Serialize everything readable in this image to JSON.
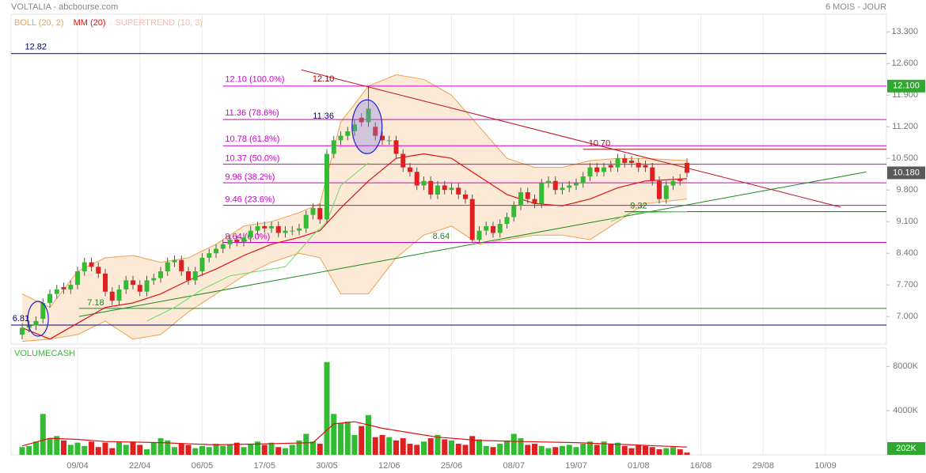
{
  "chart_data": [
    {
      "type": "candlestick",
      "title": "VOLTALIA - abcbourse.com",
      "subtitle": "6 MOIS - JOUR",
      "indicators": [
        {
          "name": "BOLL (20, 2)",
          "color": "#f0a050"
        },
        {
          "name": "MM (20)",
          "color": "#e01010"
        },
        {
          "name": "SUPERTREND (10, 3)",
          "color": "#f4b8a8"
        }
      ],
      "up_color": "#33bb33",
      "down_color": "#e02020",
      "xlim": [
        -1.6,
        124.8
      ],
      "ylim": [
        6.39,
        13.69
      ],
      "yticks": [
        {
          "value": 7.0,
          "label": "7.000"
        },
        {
          "value": 7.7,
          "label": "7.700"
        },
        {
          "value": 8.4,
          "label": "8.400"
        },
        {
          "value": 9.1,
          "label": "9.100"
        },
        {
          "value": 9.8,
          "label": "9.800"
        },
        {
          "value": 10.5,
          "label": "10.500"
        },
        {
          "value": 11.2,
          "label": "11.200"
        },
        {
          "value": 11.9,
          "label": "11.900"
        },
        {
          "value": 12.6,
          "label": "12.600"
        },
        {
          "value": 13.3,
          "label": "13.300"
        }
      ],
      "open": [
        6.6,
        6.75,
        6.8,
        6.95,
        7.3,
        7.5,
        7.65,
        7.6,
        7.7,
        8.0,
        8.2,
        8.1,
        7.95,
        7.55,
        7.35,
        7.6,
        7.8,
        7.7,
        7.55,
        7.8,
        7.85,
        8.0,
        8.2,
        8.25,
        8.0,
        7.8,
        8.0,
        8.3,
        8.4,
        8.5,
        8.6,
        8.7,
        8.65,
        8.75,
        8.9,
        9.0,
        8.95,
        9.0,
        8.85,
        8.9,
        8.9,
        8.95,
        9.25,
        9.4,
        9.15,
        10.6,
        10.9,
        11.0,
        11.1,
        11.4,
        11.3,
        11.2,
        11.0,
        10.9,
        10.9,
        10.6,
        10.3,
        10.2,
        9.9,
        10.0,
        9.7,
        9.9,
        9.8,
        9.85,
        9.7,
        9.6,
        8.7,
        8.9,
        9.0,
        8.85,
        9.05,
        9.2,
        9.45,
        9.75,
        9.6,
        9.5,
        9.95,
        10.0,
        9.8,
        9.85,
        9.9,
        9.95,
        10.1,
        10.3,
        10.2,
        10.35,
        10.3,
        10.5,
        10.45,
        10.4,
        10.35,
        10.3,
        10.0,
        9.6,
        9.9,
        10.05,
        10.4
      ],
      "high": [
        6.85,
        6.9,
        7.0,
        7.4,
        7.6,
        7.7,
        7.75,
        7.8,
        8.1,
        8.3,
        8.3,
        8.2,
        8.05,
        7.65,
        7.7,
        7.9,
        7.9,
        7.8,
        7.9,
        7.95,
        8.1,
        8.3,
        8.35,
        8.35,
        8.1,
        8.1,
        8.4,
        8.5,
        8.6,
        8.7,
        8.8,
        8.8,
        8.85,
        9.0,
        9.1,
        9.1,
        9.1,
        9.1,
        9.0,
        9.0,
        9.05,
        9.35,
        9.5,
        9.5,
        10.7,
        11.0,
        11.1,
        11.2,
        11.35,
        11.5,
        12.1,
        11.3,
        11.1,
        11.0,
        11.0,
        10.7,
        10.4,
        10.3,
        10.1,
        10.1,
        10.0,
        10.0,
        9.95,
        9.95,
        9.8,
        9.7,
        9.0,
        9.1,
        9.1,
        9.15,
        9.3,
        9.55,
        9.85,
        9.85,
        9.7,
        10.05,
        10.1,
        10.1,
        9.95,
        10.0,
        10.05,
        10.2,
        10.4,
        10.4,
        10.4,
        10.45,
        10.6,
        10.6,
        10.55,
        10.5,
        10.45,
        10.4,
        10.1,
        10.0,
        10.1,
        10.15,
        10.5
      ],
      "low": [
        6.5,
        6.65,
        6.7,
        6.85,
        7.2,
        7.4,
        7.5,
        7.5,
        7.6,
        7.9,
        8.0,
        7.85,
        7.45,
        7.25,
        7.25,
        7.5,
        7.6,
        7.45,
        7.45,
        7.7,
        7.75,
        7.9,
        8.1,
        7.9,
        7.7,
        7.7,
        7.9,
        8.2,
        8.3,
        8.4,
        8.5,
        8.55,
        8.55,
        8.65,
        8.8,
        8.85,
        8.85,
        8.75,
        8.75,
        8.8,
        8.8,
        8.85,
        9.15,
        9.05,
        9.05,
        10.5,
        10.8,
        10.9,
        11.0,
        11.2,
        11.2,
        10.9,
        10.8,
        10.8,
        10.5,
        10.2,
        10.1,
        9.8,
        9.8,
        9.6,
        9.6,
        9.7,
        9.7,
        9.6,
        9.5,
        8.64,
        8.65,
        8.8,
        8.75,
        8.75,
        8.95,
        9.1,
        9.35,
        9.5,
        9.4,
        9.4,
        9.85,
        9.7,
        9.7,
        9.75,
        9.8,
        9.85,
        10.0,
        10.1,
        10.1,
        10.2,
        10.2,
        10.3,
        10.3,
        10.2,
        10.2,
        9.9,
        9.5,
        9.5,
        9.8,
        9.9,
        10.08
      ],
      "close": [
        6.75,
        6.8,
        6.9,
        7.3,
        7.5,
        7.6,
        7.6,
        7.7,
        8.0,
        8.2,
        8.1,
        7.95,
        7.55,
        7.35,
        7.6,
        7.8,
        7.7,
        7.55,
        7.8,
        7.85,
        8.0,
        8.2,
        8.25,
        8.0,
        7.8,
        8.0,
        8.3,
        8.4,
        8.5,
        8.6,
        8.7,
        8.65,
        8.75,
        8.9,
        9.0,
        8.95,
        9.0,
        8.85,
        8.9,
        8.9,
        8.95,
        9.25,
        9.4,
        9.15,
        10.6,
        10.9,
        11.0,
        11.1,
        11.25,
        11.3,
        11.6,
        11.0,
        10.9,
        10.9,
        10.6,
        10.3,
        10.2,
        9.9,
        10.0,
        9.7,
        9.9,
        9.8,
        9.85,
        9.7,
        9.6,
        8.7,
        8.9,
        9.0,
        8.85,
        9.05,
        9.2,
        9.45,
        9.75,
        9.6,
        9.5,
        9.95,
        10.0,
        9.8,
        9.85,
        9.9,
        9.95,
        10.1,
        10.3,
        10.2,
        10.3,
        10.3,
        10.5,
        10.4,
        10.4,
        10.3,
        10.3,
        10.0,
        9.6,
        9.9,
        10.0,
        10.0,
        10.18
      ],
      "last_label": "10.180",
      "bollinger": {
        "x": [
          0,
          4,
          8,
          12,
          16,
          20,
          24,
          28,
          32,
          36,
          40,
          43,
          46,
          50,
          54,
          58,
          62,
          66,
          70,
          74,
          78,
          82,
          86,
          90,
          96
        ],
        "upper": [
          7.5,
          7.2,
          8.0,
          8.3,
          8.35,
          8.2,
          8.3,
          8.6,
          9.0,
          9.1,
          9.3,
          9.5,
          11.3,
          12.1,
          12.35,
          12.25,
          11.9,
          11.2,
          10.5,
          10.3,
          10.3,
          10.45,
          10.5,
          10.5,
          10.45
        ],
        "lower": [
          6.45,
          6.5,
          6.6,
          6.9,
          6.5,
          6.6,
          7.1,
          7.5,
          7.9,
          8.2,
          8.4,
          8.3,
          7.5,
          7.5,
          8.3,
          8.8,
          9.0,
          8.6,
          8.7,
          8.8,
          8.8,
          8.7,
          9.1,
          9.5,
          9.6
        ]
      },
      "mm": {
        "x": [
          0,
          4,
          8,
          12,
          16,
          20,
          24,
          28,
          32,
          36,
          40,
          43,
          46,
          50,
          54,
          58,
          62,
          66,
          70,
          74,
          78,
          82,
          86,
          90,
          96
        ],
        "values": [
          6.75,
          6.5,
          6.85,
          7.2,
          7.3,
          7.5,
          7.8,
          8.05,
          8.35,
          8.6,
          8.75,
          8.9,
          9.4,
          10.0,
          10.5,
          10.6,
          10.5,
          10.1,
          9.7,
          9.5,
          9.45,
          9.6,
          9.85,
          10.0,
          10.05
        ]
      },
      "supertrend": {
        "x": [
          18,
          22,
          26,
          30,
          34,
          38,
          42,
          44,
          46,
          50,
          51,
          85,
          88,
          96
        ],
        "values": [
          6.9,
          7.2,
          7.6,
          7.9,
          8.0,
          8.1,
          8.8,
          9.1,
          9.9,
          10.4,
          null,
          9.1,
          9.3,
          9.32
        ]
      },
      "levels": [
        {
          "value": 12.82,
          "label": "12.82",
          "color": "#00007a"
        },
        {
          "value": 6.81,
          "label": "6.81",
          "color": "#00007a"
        },
        {
          "value": 7.18,
          "label": "7.18",
          "color": "#1a8a1a"
        },
        {
          "value": 12.1,
          "label": "12.10 (100.0%)",
          "color": "#cc00cc",
          "marker_label": "12.100"
        },
        {
          "value": 11.36,
          "label": "11.36 (78.6%)",
          "color": "#cc00cc"
        },
        {
          "value": 10.78,
          "label": "10.78 (61.8%)",
          "color": "#cc00cc"
        },
        {
          "value": 10.37,
          "label": "10.37 (50.0%)",
          "color": "#cc00cc"
        },
        {
          "value": 9.96,
          "label": "9.96 (38.2%)",
          "color": "#cc00cc"
        },
        {
          "value": 9.46,
          "label": "9.46 (23.6%)",
          "color": "#cc00cc"
        },
        {
          "value": 8.64,
          "label": "8.64 (0.0%)",
          "color": "#cc00cc"
        },
        {
          "value": 10.7,
          "label": "10.70",
          "color": "#a01020"
        },
        {
          "value": 9.32,
          "label": "9.32",
          "color": "#1a6a1a"
        }
      ],
      "annotations": [
        {
          "label": "12.10",
          "color": "#a00000"
        },
        {
          "label": "11.36",
          "color": "#00007a"
        },
        {
          "label": "8.64",
          "color": "#1a8a1a"
        }
      ]
    },
    {
      "type": "bar",
      "title": "VOLUMECASH",
      "xlim": [
        -1.6,
        124.8
      ],
      "ylim": [
        0,
        9670
      ],
      "yticks": [
        {
          "value": 4000,
          "label": "4000K"
        },
        {
          "value": 8000,
          "label": "8000K"
        }
      ],
      "xticks": [
        {
          "value": 8,
          "label": "09/04"
        },
        {
          "value": 17,
          "label": "22/04"
        },
        {
          "value": 26,
          "label": "06/05"
        },
        {
          "value": 35,
          "label": "17/05"
        },
        {
          "value": 44,
          "label": "30/05"
        },
        {
          "value": 53,
          "label": "12/06"
        },
        {
          "value": 62,
          "label": "25/06"
        },
        {
          "value": 71,
          "label": "08/07"
        },
        {
          "value": 80,
          "label": "19/07"
        },
        {
          "value": 89,
          "label": "01/08"
        },
        {
          "value": 98,
          "label": "16/08"
        },
        {
          "value": 107,
          "label": "29/08"
        },
        {
          "value": 116,
          "label": "10/09"
        }
      ],
      "values": [
        700,
        800,
        1200,
        3700,
        1500,
        1700,
        1300,
        900,
        1100,
        800,
        1200,
        700,
        1100,
        600,
        1200,
        900,
        1200,
        900,
        500,
        1100,
        1500,
        1300,
        700,
        1000,
        900,
        600,
        800,
        700,
        1000,
        800,
        900,
        1100,
        700,
        1000,
        1200,
        900,
        1100,
        700,
        600,
        900,
        1300,
        1900,
        1200,
        1000,
        8400,
        3700,
        2900,
        3000,
        1800,
        2600,
        3600,
        1600,
        1800,
        1600,
        1300,
        1500,
        1000,
        900,
        1200,
        1500,
        1800,
        1400,
        1300,
        1000,
        900,
        1700,
        1400,
        800,
        700,
        1000,
        1300,
        1900,
        1500,
        900,
        1000,
        800,
        600,
        700,
        800,
        900,
        700,
        1000,
        1200,
        900,
        1200,
        1000,
        1100,
        800,
        600,
        900,
        800,
        700,
        500,
        600,
        700,
        500,
        202
      ],
      "last_label": "202K",
      "ma": {
        "name": "MM",
        "color": "#e01010",
        "x": [
          0,
          4,
          8,
          12,
          20,
          28,
          36,
          42,
          45,
          48,
          52,
          56,
          60,
          66,
          72,
          80,
          88,
          96
        ],
        "values": [
          800,
          1500,
          1400,
          1200,
          1100,
          900,
          1000,
          1100,
          2800,
          3000,
          2400,
          2000,
          1600,
          1300,
          1200,
          1100,
          900,
          700
        ]
      }
    }
  ]
}
